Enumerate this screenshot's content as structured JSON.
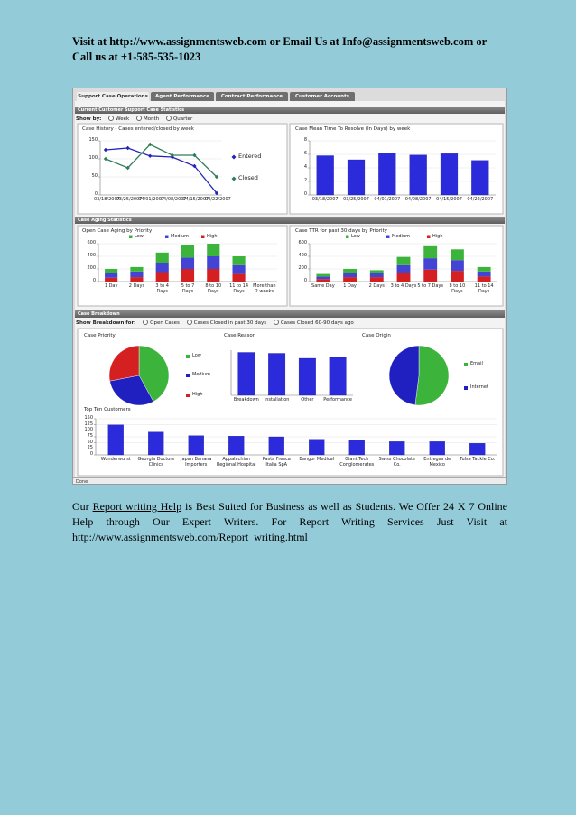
{
  "header": {
    "text": "Visit at http://www.assignmentsweb.com or Email Us at Info@assignmentsweb.com or Call us at +1-585-535-1023"
  },
  "dashboard": {
    "tabs": [
      "Support Case Operations",
      "Agent Performance",
      "Contract Performance",
      "Customer Accounts"
    ],
    "panels": [
      "Current Customer Support Case Statistics",
      "Case Aging Statistics",
      "Case Breakdown"
    ],
    "show_by": {
      "label": "Show by:",
      "options": [
        "Week",
        "Month",
        "Quarter"
      ]
    },
    "show_breakdown": {
      "label": "Show Breakdown for:",
      "options": [
        "Open Cases",
        "Cases Closed in past 30 days",
        "Cases Closed 60-90 days ago"
      ]
    },
    "status": "Done"
  },
  "chart_data": [
    {
      "type": "line",
      "title": "Case History - Cases entered/closed by week",
      "categories": [
        "03/18/2007",
        "03/25/2007",
        "04/01/2007",
        "04/08/2007",
        "04/15/2007",
        "04/22/2007"
      ],
      "series": [
        {
          "name": "Entered",
          "color": "#2424b4",
          "values": [
            125,
            130,
            108,
            105,
            80,
            5
          ]
        },
        {
          "name": "Closed",
          "color": "#2e7d5b",
          "values": [
            100,
            75,
            140,
            110,
            110,
            50
          ]
        }
      ],
      "ylim": [
        0,
        150
      ],
      "yticks": [
        0,
        50,
        100,
        150
      ],
      "grid": true,
      "legend": "right"
    },
    {
      "type": "bar",
      "title": "Case Mean Time To Resolve (In Days) by week",
      "categories": [
        "03/18/2007",
        "03/25/2007",
        "04/01/2007",
        "04/08/2007",
        "04/15/2007",
        "04/22/2007"
      ],
      "values": [
        5.8,
        5.2,
        6.2,
        5.9,
        6.1,
        5.1
      ],
      "color": "#2b2bdc",
      "ylim": [
        0,
        8
      ],
      "yticks": [
        0,
        2,
        4,
        6,
        8
      ],
      "grid": true
    },
    {
      "type": "stacked_bar",
      "title": "Open Case Aging by Priority",
      "categories": [
        "1 Day",
        "2 Days",
        "3 to 4 Days",
        "5 to 7 Days",
        "8 to 10 Days",
        "11 to 14 Days",
        "More than 2 weeks"
      ],
      "series": [
        {
          "name": "Low",
          "color": "#3cb43c",
          "values": [
            60,
            70,
            160,
            200,
            200,
            140,
            0
          ]
        },
        {
          "name": "Medium",
          "color": "#4444d4",
          "values": [
            80,
            90,
            150,
            180,
            200,
            140,
            0
          ]
        },
        {
          "name": "High",
          "color": "#d42020",
          "values": [
            60,
            70,
            150,
            200,
            200,
            120,
            0
          ]
        }
      ],
      "ylim": [
        0,
        600
      ],
      "yticks": [
        0,
        200,
        400,
        600
      ],
      "grid": true,
      "legend": "top"
    },
    {
      "type": "stacked_bar",
      "title": "Case TTR for past 30 days by Priority",
      "categories": [
        "Same Day",
        "1 Day",
        "2 Days",
        "3 to 4 Days",
        "5 to 7 Days",
        "8 to 10 Days",
        "11 to 14 Days"
      ],
      "series": [
        {
          "name": "Low",
          "color": "#3cb43c",
          "values": [
            40,
            60,
            50,
            130,
            190,
            170,
            70
          ]
        },
        {
          "name": "Medium",
          "color": "#4444d4",
          "values": [
            40,
            70,
            60,
            130,
            180,
            170,
            80
          ]
        },
        {
          "name": "High",
          "color": "#d42020",
          "values": [
            40,
            70,
            70,
            130,
            190,
            170,
            80
          ]
        }
      ],
      "ylim": [
        0,
        600
      ],
      "yticks": [
        0,
        200,
        400,
        600
      ],
      "grid": true,
      "legend": "top"
    },
    {
      "type": "pie",
      "title": "Case Priority",
      "categories": [
        "Low",
        "Medium",
        "High"
      ],
      "values": [
        42,
        30,
        28
      ],
      "colors": [
        "#3cb43c",
        "#2020c0",
        "#d42020"
      ],
      "legend": "right"
    },
    {
      "type": "bar",
      "title": "Case Reason",
      "categories": [
        "Breakdown",
        "Installation",
        "Other",
        "Performance"
      ],
      "values": [
        95,
        93,
        82,
        84
      ],
      "color": "#2b2bdc",
      "ylim": [
        0,
        100
      ],
      "grid": false
    },
    {
      "type": "pie",
      "title": "Case Origin",
      "categories": [
        "Email",
        "Internet"
      ],
      "values": [
        52,
        48
      ],
      "colors": [
        "#3cb43c",
        "#2020c0"
      ],
      "legend": "right"
    },
    {
      "type": "bar",
      "title": "Top Ten Customers",
      "categories": [
        "Wonderwurst",
        "Georgia Doctors Clinics",
        "Japan Banana Importers",
        "Appalachian Regional Hospital",
        "Pasta Fresca Italia SpA",
        "Bangor Medical",
        "Giant Tech Conglomerates",
        "Swiss Chocolate Co.",
        "Entregas de Mexico",
        "Tulsa Tackle Co."
      ],
      "values": [
        125,
        95,
        80,
        78,
        75,
        65,
        62,
        55,
        55,
        48
      ],
      "color": "#2b2bdc",
      "ylim": [
        0,
        150
      ],
      "yticks": [
        0,
        25,
        50,
        75,
        100,
        125,
        150
      ],
      "grid": true
    }
  ],
  "footer": {
    "text_before": "Our",
    "link_text": "Report writing Help",
    "text_after": "is Best Suited for Business as well as Students. We Offer 24 X 7 Online Help through Our Expert Writers. For Report Writing Services Just Visit at",
    "link_url": "http://www.assignmentsweb.com/Report_writing.html"
  }
}
